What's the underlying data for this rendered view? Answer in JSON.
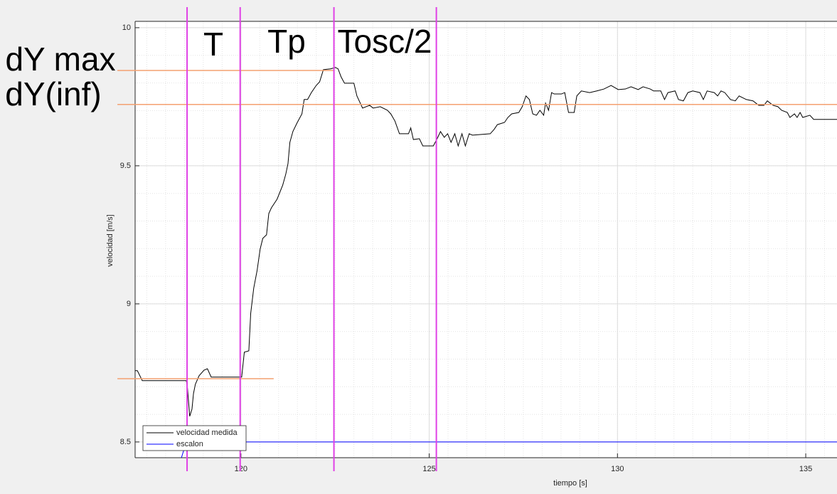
{
  "chart_data": {
    "type": "line",
    "xlabel": "tiempo [s]",
    "ylabel": "velocidad [m/s]",
    "xlim": [
      117.19,
      135.83
    ],
    "ylim": [
      8.443,
      10.023
    ],
    "xticks": [
      120,
      125,
      130,
      135
    ],
    "yticks": [
      10,
      9.5,
      9,
      8.5
    ],
    "grid": true,
    "minor_grid": true,
    "legend": "lower left",
    "series": [
      {
        "name": "velocidad medida",
        "color": "#000000",
        "x": [
          117.19,
          117.25,
          117.38,
          118.55,
          118.58,
          118.64,
          118.7,
          118.74,
          118.79,
          118.89,
          119.02,
          119.11,
          119.21,
          120.02,
          120.09,
          120.21,
          120.26,
          120.34,
          120.43,
          120.51,
          120.58,
          120.68,
          120.74,
          120.81,
          120.96,
          121.11,
          121.19,
          121.25,
          121.3,
          121.38,
          121.49,
          121.62,
          121.68,
          121.77,
          121.87,
          122.0,
          122.09,
          122.19,
          122.38,
          122.51,
          122.58,
          122.66,
          122.75,
          123.0,
          123.08,
          123.23,
          123.42,
          123.51,
          123.7,
          123.89,
          123.98,
          124.09,
          124.21,
          124.45,
          124.51,
          124.58,
          124.74,
          124.83,
          124.92,
          125.11,
          125.21,
          125.3,
          125.4,
          125.49,
          125.58,
          125.68,
          125.77,
          125.87,
          125.96,
          126.06,
          126.15,
          126.62,
          126.72,
          126.81,
          127.0,
          127.09,
          127.19,
          127.38,
          127.47,
          127.57,
          127.66,
          127.75,
          127.85,
          127.94,
          128.04,
          128.09,
          128.17,
          128.25,
          128.32,
          128.51,
          128.6,
          128.7,
          128.85,
          128.92,
          129.04,
          129.26,
          129.45,
          129.64,
          129.83,
          130.02,
          130.21,
          130.36,
          130.55,
          130.68,
          130.87,
          130.96,
          131.15,
          131.25,
          131.34,
          131.53,
          131.62,
          131.75,
          131.87,
          132.0,
          132.19,
          132.28,
          132.38,
          132.57,
          132.66,
          132.75,
          132.85,
          133.0,
          133.13,
          133.23,
          133.42,
          133.6,
          133.75,
          133.89,
          133.98,
          134.13,
          134.26,
          134.36,
          134.51,
          134.58,
          134.7,
          134.77,
          134.85,
          134.92,
          135.11,
          135.21,
          135.4,
          135.83
        ],
        "values": [
          8.758,
          8.758,
          8.722,
          8.722,
          8.696,
          8.593,
          8.619,
          8.675,
          8.709,
          8.74,
          8.76,
          8.765,
          8.735,
          8.735,
          8.825,
          8.83,
          8.966,
          9.057,
          9.121,
          9.198,
          9.237,
          9.25,
          9.327,
          9.348,
          9.379,
          9.43,
          9.469,
          9.508,
          9.585,
          9.624,
          9.655,
          9.688,
          9.74,
          9.74,
          9.765,
          9.791,
          9.804,
          9.848,
          9.851,
          9.856,
          9.851,
          9.822,
          9.799,
          9.799,
          9.753,
          9.709,
          9.719,
          9.709,
          9.714,
          9.701,
          9.688,
          9.662,
          9.616,
          9.616,
          9.637,
          9.595,
          9.598,
          9.572,
          9.572,
          9.572,
          9.598,
          9.624,
          9.603,
          9.616,
          9.585,
          9.616,
          9.572,
          9.616,
          9.572,
          9.616,
          9.611,
          9.616,
          9.631,
          9.649,
          9.657,
          9.675,
          9.688,
          9.693,
          9.714,
          9.753,
          9.74,
          9.688,
          9.683,
          9.701,
          9.683,
          9.727,
          9.701,
          9.765,
          9.76,
          9.76,
          9.765,
          9.693,
          9.693,
          9.753,
          9.771,
          9.765,
          9.771,
          9.778,
          9.791,
          9.776,
          9.778,
          9.786,
          9.776,
          9.786,
          9.778,
          9.771,
          9.771,
          9.74,
          9.765,
          9.771,
          9.74,
          9.735,
          9.765,
          9.771,
          9.765,
          9.74,
          9.771,
          9.765,
          9.753,
          9.771,
          9.765,
          9.74,
          9.735,
          9.753,
          9.74,
          9.735,
          9.719,
          9.719,
          9.735,
          9.719,
          9.714,
          9.701,
          9.693,
          9.675,
          9.688,
          9.675,
          9.693,
          9.675,
          9.683,
          9.668,
          9.668,
          9.668
        ]
      },
      {
        "name": "escalon",
        "color": "#0000ff",
        "x": [
          118.42,
          118.55,
          135.83
        ],
        "values": [
          8.443,
          8.5,
          8.5
        ]
      }
    ],
    "hline_color": "#f4a070",
    "hlines": [
      {
        "y": 9.845,
        "x": [
          116.72,
          122.47
        ]
      },
      {
        "y": 9.722,
        "x": [
          116.72,
          135.83
        ]
      },
      {
        "y": 8.729,
        "x": [
          116.72,
          120.87
        ]
      }
    ],
    "vline_color": "#e040e6",
    "vlines": [
      118.57,
      119.98,
      122.47,
      125.19
    ],
    "annotations": [
      "T",
      "Tp",
      "Tosc/2",
      "dY max",
      "dY(inf)"
    ]
  }
}
